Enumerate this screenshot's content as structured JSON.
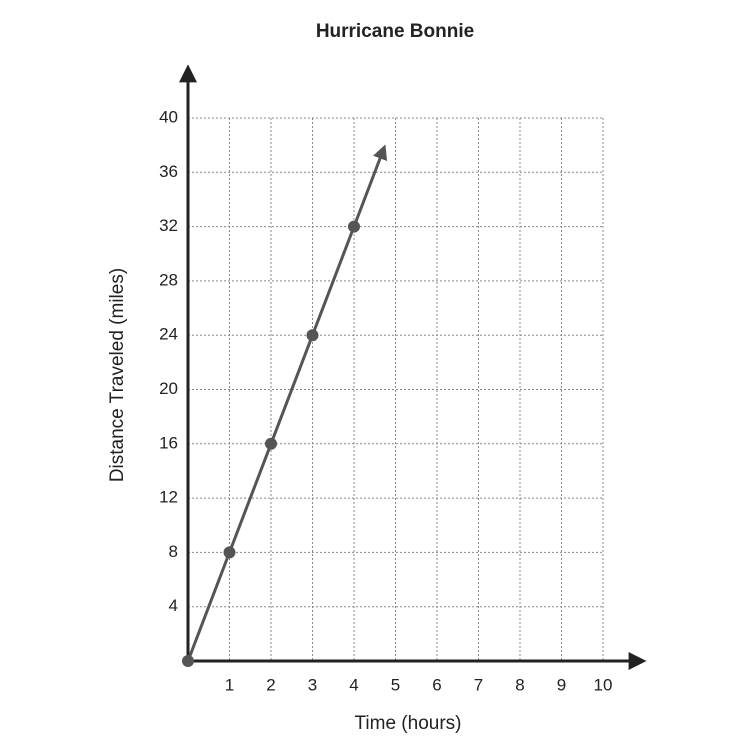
{
  "chart_data": {
    "type": "line",
    "title": "Hurricane Bonnie",
    "x_label": "Time (hours)",
    "y_label": "Distance Traveled (miles)",
    "x": [
      0,
      1,
      2,
      3,
      4
    ],
    "series": [
      {
        "name": "Hurricane Bonnie",
        "color": "#555555",
        "values": [
          0,
          8,
          16,
          24,
          32
        ]
      }
    ],
    "xlim": [
      0,
      10
    ],
    "xticks": [
      1,
      2,
      3,
      4,
      5,
      6,
      7,
      8,
      9,
      10
    ],
    "ylim": [
      0,
      40
    ],
    "yticks": [
      4,
      8,
      12,
      16,
      20,
      24,
      28,
      32,
      36,
      40
    ],
    "grid": true
  }
}
